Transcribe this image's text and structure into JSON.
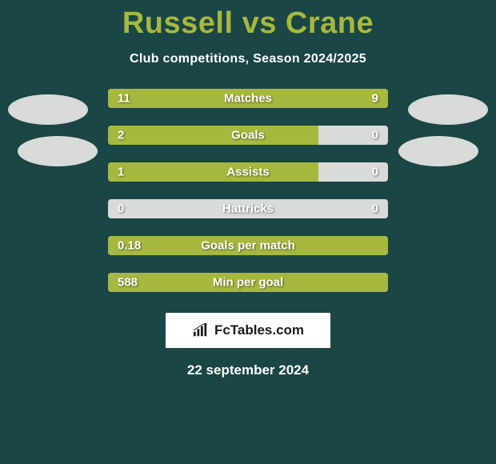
{
  "title": "Russell vs Crane",
  "subtitle": "Club competitions, Season 2024/2025",
  "colors": {
    "background": "#1a4645",
    "bar_fill": "#a6b83e",
    "bar_track": "#d9dada",
    "title_color": "#a6b83e",
    "text_color": "#ffffff"
  },
  "bars": [
    {
      "label": "Matches",
      "left_val": "11",
      "right_val": "9",
      "left_pct": 55,
      "right_pct": 45
    },
    {
      "label": "Goals",
      "left_val": "2",
      "right_val": "0",
      "left_pct": 75,
      "right_pct": 0
    },
    {
      "label": "Assists",
      "left_val": "1",
      "right_val": "0",
      "left_pct": 75,
      "right_pct": 0
    },
    {
      "label": "Hattricks",
      "left_val": "0",
      "right_val": "0",
      "left_pct": 0,
      "right_pct": 0
    },
    {
      "label": "Goals per match",
      "left_val": "0.18",
      "right_val": "",
      "left_pct": 100,
      "right_pct": 0
    },
    {
      "label": "Min per goal",
      "left_val": "588",
      "right_val": "",
      "left_pct": 100,
      "right_pct": 0
    }
  ],
  "brand": "FcTables.com",
  "date": "22 september 2024"
}
